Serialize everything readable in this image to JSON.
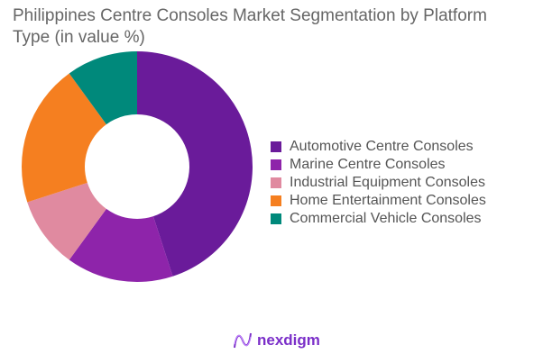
{
  "chart_data": {
    "type": "pie",
    "title": "Philippines Centre Consoles Market Segmentation by Platform Type (in value %)",
    "categories": [
      "Automotive Centre Consoles",
      "Marine Centre Consoles",
      "Industrial Equipment Consoles",
      "Home Entertainment Consoles",
      "Commercial Vehicle Consoles"
    ],
    "values": [
      45,
      15,
      10,
      20,
      10
    ],
    "colors": [
      "#6a1b9a",
      "#8e24aa",
      "#e08aa0",
      "#f57f20",
      "#00897b"
    ],
    "donut": true,
    "legend_position": "right"
  },
  "brand": {
    "name": "nexdigm"
  }
}
